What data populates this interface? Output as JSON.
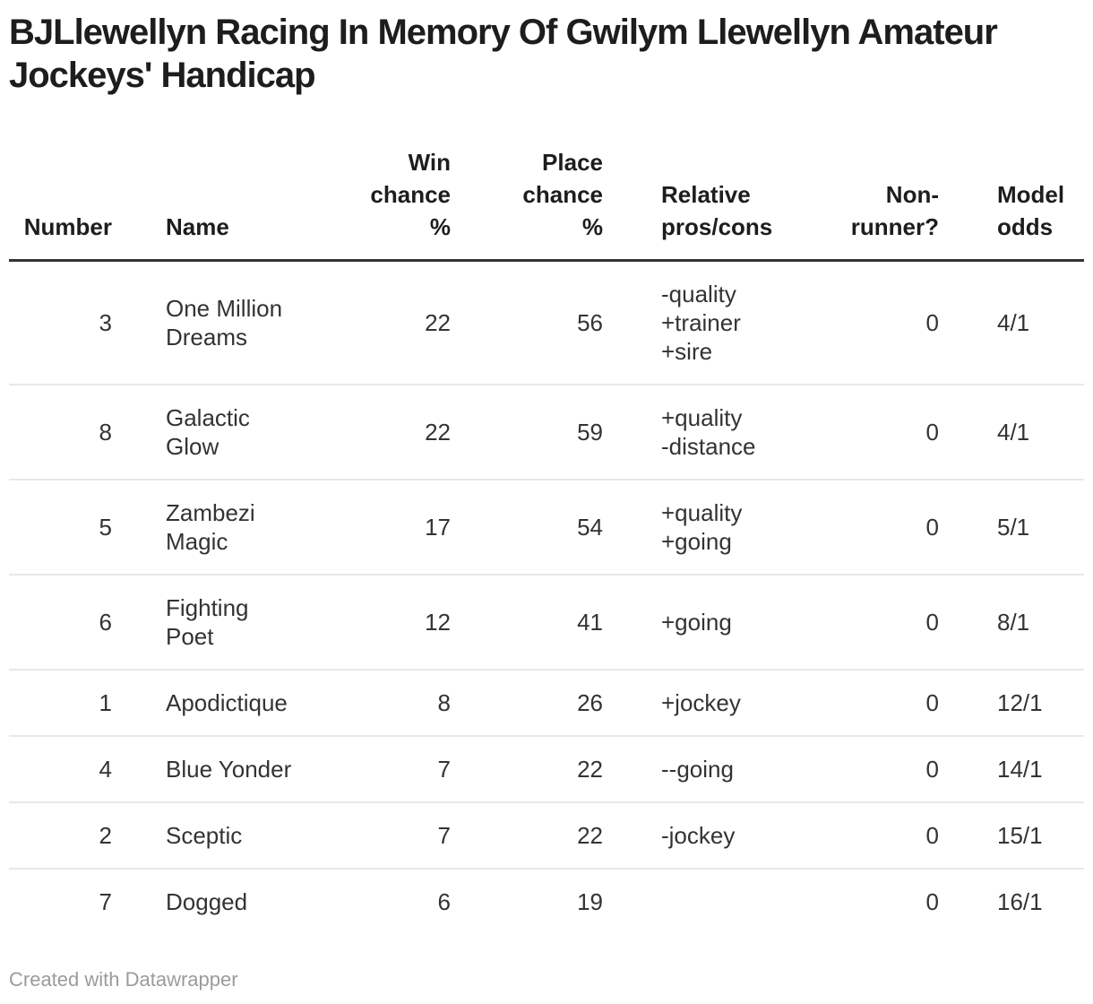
{
  "title": "BJLlewellyn Racing In Memory Of Gwilym Llewellyn Amateur Jockeys' Handicap",
  "title_lines": [
    "BJLlewellyn Racing In Memory Of Gwilym Llewellyn Amateur",
    "Jockeys' Handicap"
  ],
  "table": {
    "columns": [
      {
        "id": "number",
        "label": "Number",
        "label_lines": [
          "Number"
        ],
        "align": "right"
      },
      {
        "id": "name",
        "label": "Name",
        "label_lines": [
          "Name"
        ],
        "align": "left"
      },
      {
        "id": "win-chance",
        "label": "Win chance %",
        "label_lines": [
          "Win",
          "chance",
          "%"
        ],
        "align": "right"
      },
      {
        "id": "place-chance",
        "label": "Place chance %",
        "label_lines": [
          "Place",
          "chance",
          "%"
        ],
        "align": "right"
      },
      {
        "id": "pros-cons",
        "label": "Relative pros/cons",
        "label_lines": [
          "Relative",
          "pros/cons"
        ],
        "align": "left"
      },
      {
        "id": "non-runner",
        "label": "Non-runner?",
        "label_lines": [
          "Non-",
          "runner?"
        ],
        "align": "right"
      },
      {
        "id": "model-odds",
        "label": "Model odds",
        "label_lines": [
          "Model",
          "odds"
        ],
        "align": "left"
      }
    ],
    "rows": [
      {
        "number": 3,
        "name": "One Million Dreams",
        "name_lines": [
          "One Million",
          "Dreams"
        ],
        "win_chance_pct": 22,
        "place_chance_pct": 56,
        "pros_cons": "-quality +trainer +sire",
        "pros_cons_lines": [
          "-quality",
          "+trainer",
          "+sire"
        ],
        "non_runner": 0,
        "model_odds": "4/1"
      },
      {
        "number": 8,
        "name": "Galactic Glow",
        "name_lines": [
          "Galactic",
          "Glow"
        ],
        "win_chance_pct": 22,
        "place_chance_pct": 59,
        "pros_cons": "+quality -distance",
        "pros_cons_lines": [
          "+quality",
          "-distance"
        ],
        "non_runner": 0,
        "model_odds": "4/1"
      },
      {
        "number": 5,
        "name": "Zambezi Magic",
        "name_lines": [
          "Zambezi",
          "Magic"
        ],
        "win_chance_pct": 17,
        "place_chance_pct": 54,
        "pros_cons": "+quality +going",
        "pros_cons_lines": [
          "+quality",
          "+going"
        ],
        "non_runner": 0,
        "model_odds": "5/1"
      },
      {
        "number": 6,
        "name": "Fighting Poet",
        "name_lines": [
          "Fighting",
          "Poet"
        ],
        "win_chance_pct": 12,
        "place_chance_pct": 41,
        "pros_cons": "+going",
        "pros_cons_lines": [
          "+going"
        ],
        "non_runner": 0,
        "model_odds": "8/1"
      },
      {
        "number": 1,
        "name": "Apodictique",
        "name_lines": [
          "Apodictique"
        ],
        "win_chance_pct": 8,
        "place_chance_pct": 26,
        "pros_cons": "+jockey",
        "pros_cons_lines": [
          "+jockey"
        ],
        "non_runner": 0,
        "model_odds": "12/1"
      },
      {
        "number": 4,
        "name": "Blue Yonder",
        "name_lines": [
          "Blue Yonder"
        ],
        "win_chance_pct": 7,
        "place_chance_pct": 22,
        "pros_cons": "--going",
        "pros_cons_lines": [
          "--going"
        ],
        "non_runner": 0,
        "model_odds": "14/1"
      },
      {
        "number": 2,
        "name": "Sceptic",
        "name_lines": [
          "Sceptic"
        ],
        "win_chance_pct": 7,
        "place_chance_pct": 22,
        "pros_cons": "-jockey",
        "pros_cons_lines": [
          "-jockey"
        ],
        "non_runner": 0,
        "model_odds": "15/1"
      },
      {
        "number": 7,
        "name": "Dogged",
        "name_lines": [
          "Dogged"
        ],
        "win_chance_pct": 6,
        "place_chance_pct": 19,
        "pros_cons": "",
        "pros_cons_lines": [],
        "non_runner": 0,
        "model_odds": "16/1"
      }
    ]
  },
  "footer": {
    "credit": "Created with Datawrapper"
  },
  "colors": {
    "background": "#ffffff",
    "title_text": "#1d1d1d",
    "header_text": "#1d1d1d",
    "body_text": "#333333",
    "header_rule": "#333333",
    "row_divider": "#e8e8e8",
    "credit_text": "#9b9b9b"
  },
  "chart_data": {
    "type": "table",
    "title": "BJLlewellyn Racing In Memory Of Gwilym Llewellyn Amateur Jockeys' Handicap",
    "columns": [
      "Number",
      "Name",
      "Win chance %",
      "Place chance %",
      "Relative pros/cons",
      "Non-runner?",
      "Model odds"
    ],
    "rows": [
      [
        3,
        "One Million Dreams",
        22,
        56,
        "-quality +trainer +sire",
        0,
        "4/1"
      ],
      [
        8,
        "Galactic Glow",
        22,
        59,
        "+quality -distance",
        0,
        "4/1"
      ],
      [
        5,
        "Zambezi Magic",
        17,
        54,
        "+quality +going",
        0,
        "5/1"
      ],
      [
        6,
        "Fighting Poet",
        12,
        41,
        "+going",
        0,
        "8/1"
      ],
      [
        1,
        "Apodictique",
        8,
        26,
        "+jockey",
        0,
        "12/1"
      ],
      [
        4,
        "Blue Yonder",
        7,
        22,
        "--going",
        0,
        "14/1"
      ],
      [
        2,
        "Sceptic",
        7,
        22,
        "-jockey",
        0,
        "15/1"
      ],
      [
        7,
        "Dogged",
        6,
        19,
        "",
        0,
        "16/1"
      ]
    ]
  }
}
